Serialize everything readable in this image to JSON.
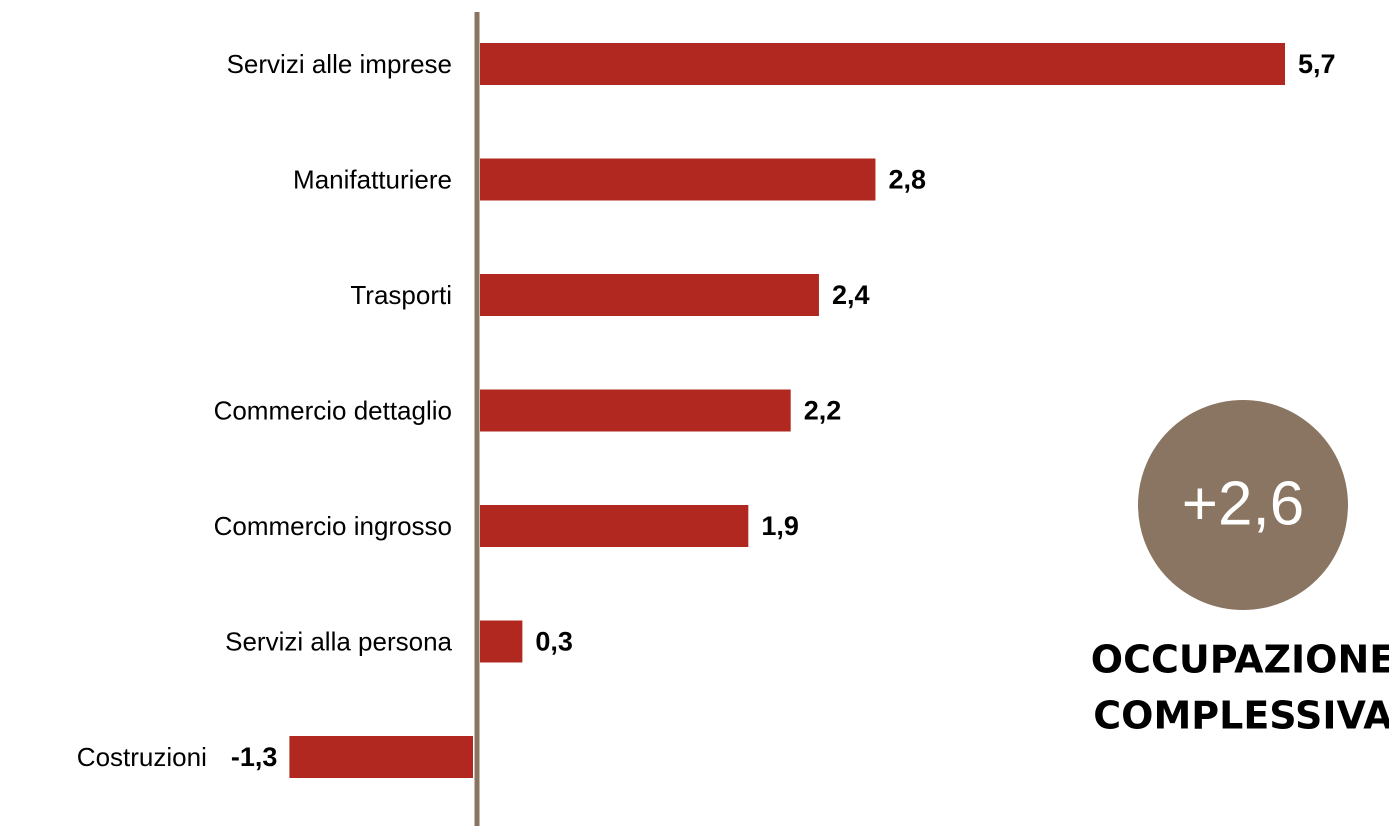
{
  "chart_data": {
    "type": "bar",
    "orientation": "horizontal",
    "categories": [
      "Servizi alle imprese",
      "Manifatturiere",
      "Trasporti",
      "Commercio dettaglio",
      "Commercio ingrosso",
      "Servizi alla persona",
      "Costruzioni"
    ],
    "values": [
      5.7,
      2.8,
      2.4,
      2.2,
      1.9,
      0.3,
      -1.3
    ],
    "value_labels": [
      "5,7",
      "2,8",
      "2,4",
      "2,2",
      "1,9",
      "0,3",
      "-1,3"
    ],
    "color": "#b0281f",
    "annotation": {
      "value": "+2,6",
      "lines": [
        "OCCUPAZIONE",
        "COMPLESSIVA"
      ],
      "color": "#8a7562"
    }
  }
}
